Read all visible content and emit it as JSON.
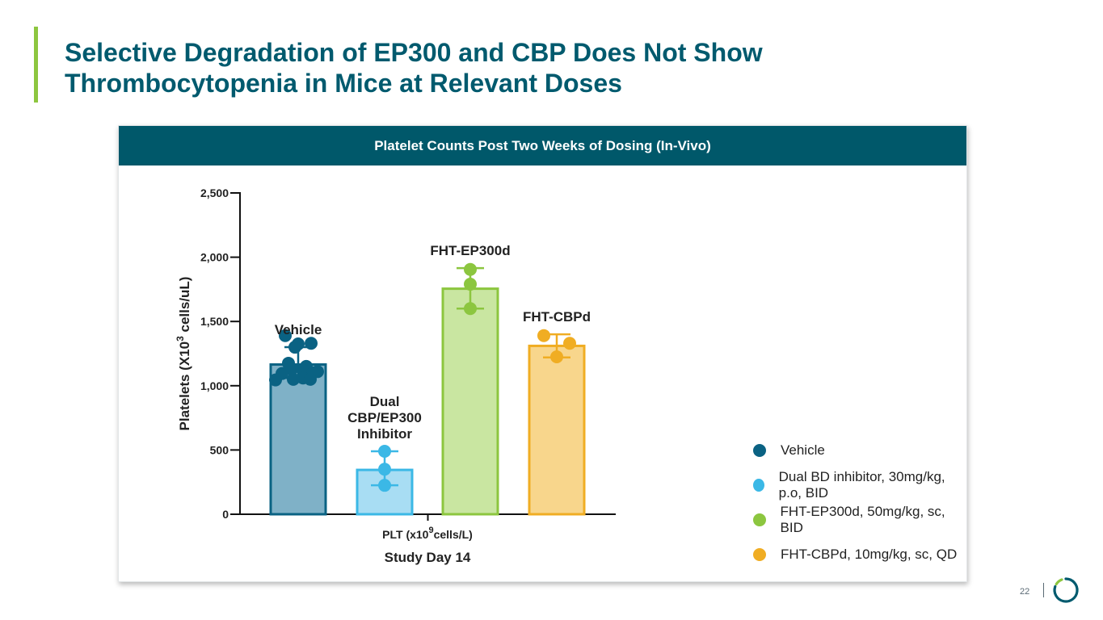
{
  "slide": {
    "title_line1": "Selective Degradation of EP300 and CBP Does Not Show",
    "title_line2": "Thrombocytopenia in Mice at Relevant Doses",
    "panel_header": "Platelet Counts Post Two Weeks of Dosing (In-Vivo)",
    "page_number": "22"
  },
  "chart_data": {
    "type": "bar",
    "title": "Platelet Counts Post Two Weeks of Dosing (In-Vivo)",
    "ylabel_main": "Platelets  (X10",
    "ylabel_sup": "3",
    "ylabel_tail": " cells/uL)",
    "xlabel_main": "PLT (x10",
    "xlabel_sup": "9",
    "xlabel_tail": "cells/L)",
    "subtitle": "Study Day 14",
    "ylim": [
      0,
      2500
    ],
    "yticks": [
      0,
      500,
      1000,
      1500,
      2000,
      2500
    ],
    "ytick_labels": [
      "0",
      "500",
      "1,000",
      "1,500",
      "2,000",
      "2,500"
    ],
    "categories": [
      "Vehicle",
      "Dual CBP/EP300 Inhibitor",
      "FHT-EP300d",
      "FHT-CBPd"
    ],
    "bar_label_lines": [
      [
        "Vehicle"
      ],
      [
        "Dual",
        "CBP/EP300",
        "Inhibitor"
      ],
      [
        "FHT-EP300d"
      ],
      [
        "FHT-CBPd"
      ]
    ],
    "series": [
      {
        "name": "Vehicle",
        "value": 1165,
        "err_low": 1060,
        "err_high": 1300,
        "points": [
          1390,
          1330,
          1325,
          1300,
          1175,
          1150,
          1130,
          1120,
          1110,
          1100,
          1095,
          1060,
          1050,
          1050,
          1045
        ],
        "color": "#0a6283",
        "fill": "#7fb1c7"
      },
      {
        "name": "Dual BD inhibitor, 30mg/kg, p.o, BID",
        "value": 345,
        "err_low": 225,
        "err_high": 490,
        "points": [
          490,
          350,
          225
        ],
        "color": "#3bb8e6",
        "fill": "#a8ddf3"
      },
      {
        "name": "FHT-EP300d, 50mg/kg, sc, BID",
        "value": 1755,
        "err_low": 1600,
        "err_high": 1915,
        "points": [
          1905,
          1790,
          1600
        ],
        "color": "#8cc63f",
        "fill": "#c9e6a1"
      },
      {
        "name": "FHT-CBPd, 10mg/kg, sc, QD",
        "value": 1310,
        "err_low": 1220,
        "err_high": 1400,
        "points": [
          1390,
          1330,
          1225
        ],
        "color": "#f0ad23",
        "fill": "#f8d68c"
      }
    ]
  }
}
